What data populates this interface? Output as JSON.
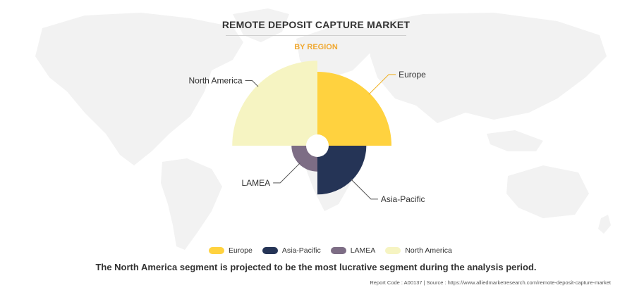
{
  "header": {
    "title": "REMOTE DEPOSIT CAPTURE MARKET",
    "subtitle": "BY REGION"
  },
  "chart_data": {
    "type": "pie",
    "variant": "polar-area (rose) chart, equal 90° sectors, radius shows relative size",
    "title": "REMOTE DEPOSIT CAPTURE MARKET",
    "subtitle": "BY REGION",
    "categories": [
      "Europe",
      "Asia-Pacific",
      "LAMEA",
      "North America"
    ],
    "values": [
      1.0,
      0.66,
      0.35,
      1.15
    ],
    "value_note": "relative sector radii (Europe = 1.00); no numeric labels are printed",
    "colors": [
      "#ffd23f",
      "#253456",
      "#7d6d85",
      "#f6f4c2"
    ],
    "legend_position": "bottom-center"
  },
  "legend": {
    "items": [
      {
        "label": "Europe",
        "color": "#ffd23f"
      },
      {
        "label": "Asia-Pacific",
        "color": "#253456"
      },
      {
        "label": "LAMEA",
        "color": "#7d6d85"
      },
      {
        "label": "North America",
        "color": "#f6f4c2"
      }
    ]
  },
  "footnote": "The North America segment is projected to be the most lucrative segment during the analysis period.",
  "source_line": "Report Code : A00137  |  Source : https://www.alliedmarketresearch.com/remote-deposit-capture-market",
  "colors": {
    "map": "#f2f2f2",
    "title": "#333333",
    "subtitle": "#f0a830",
    "leader_line": "#555555"
  }
}
